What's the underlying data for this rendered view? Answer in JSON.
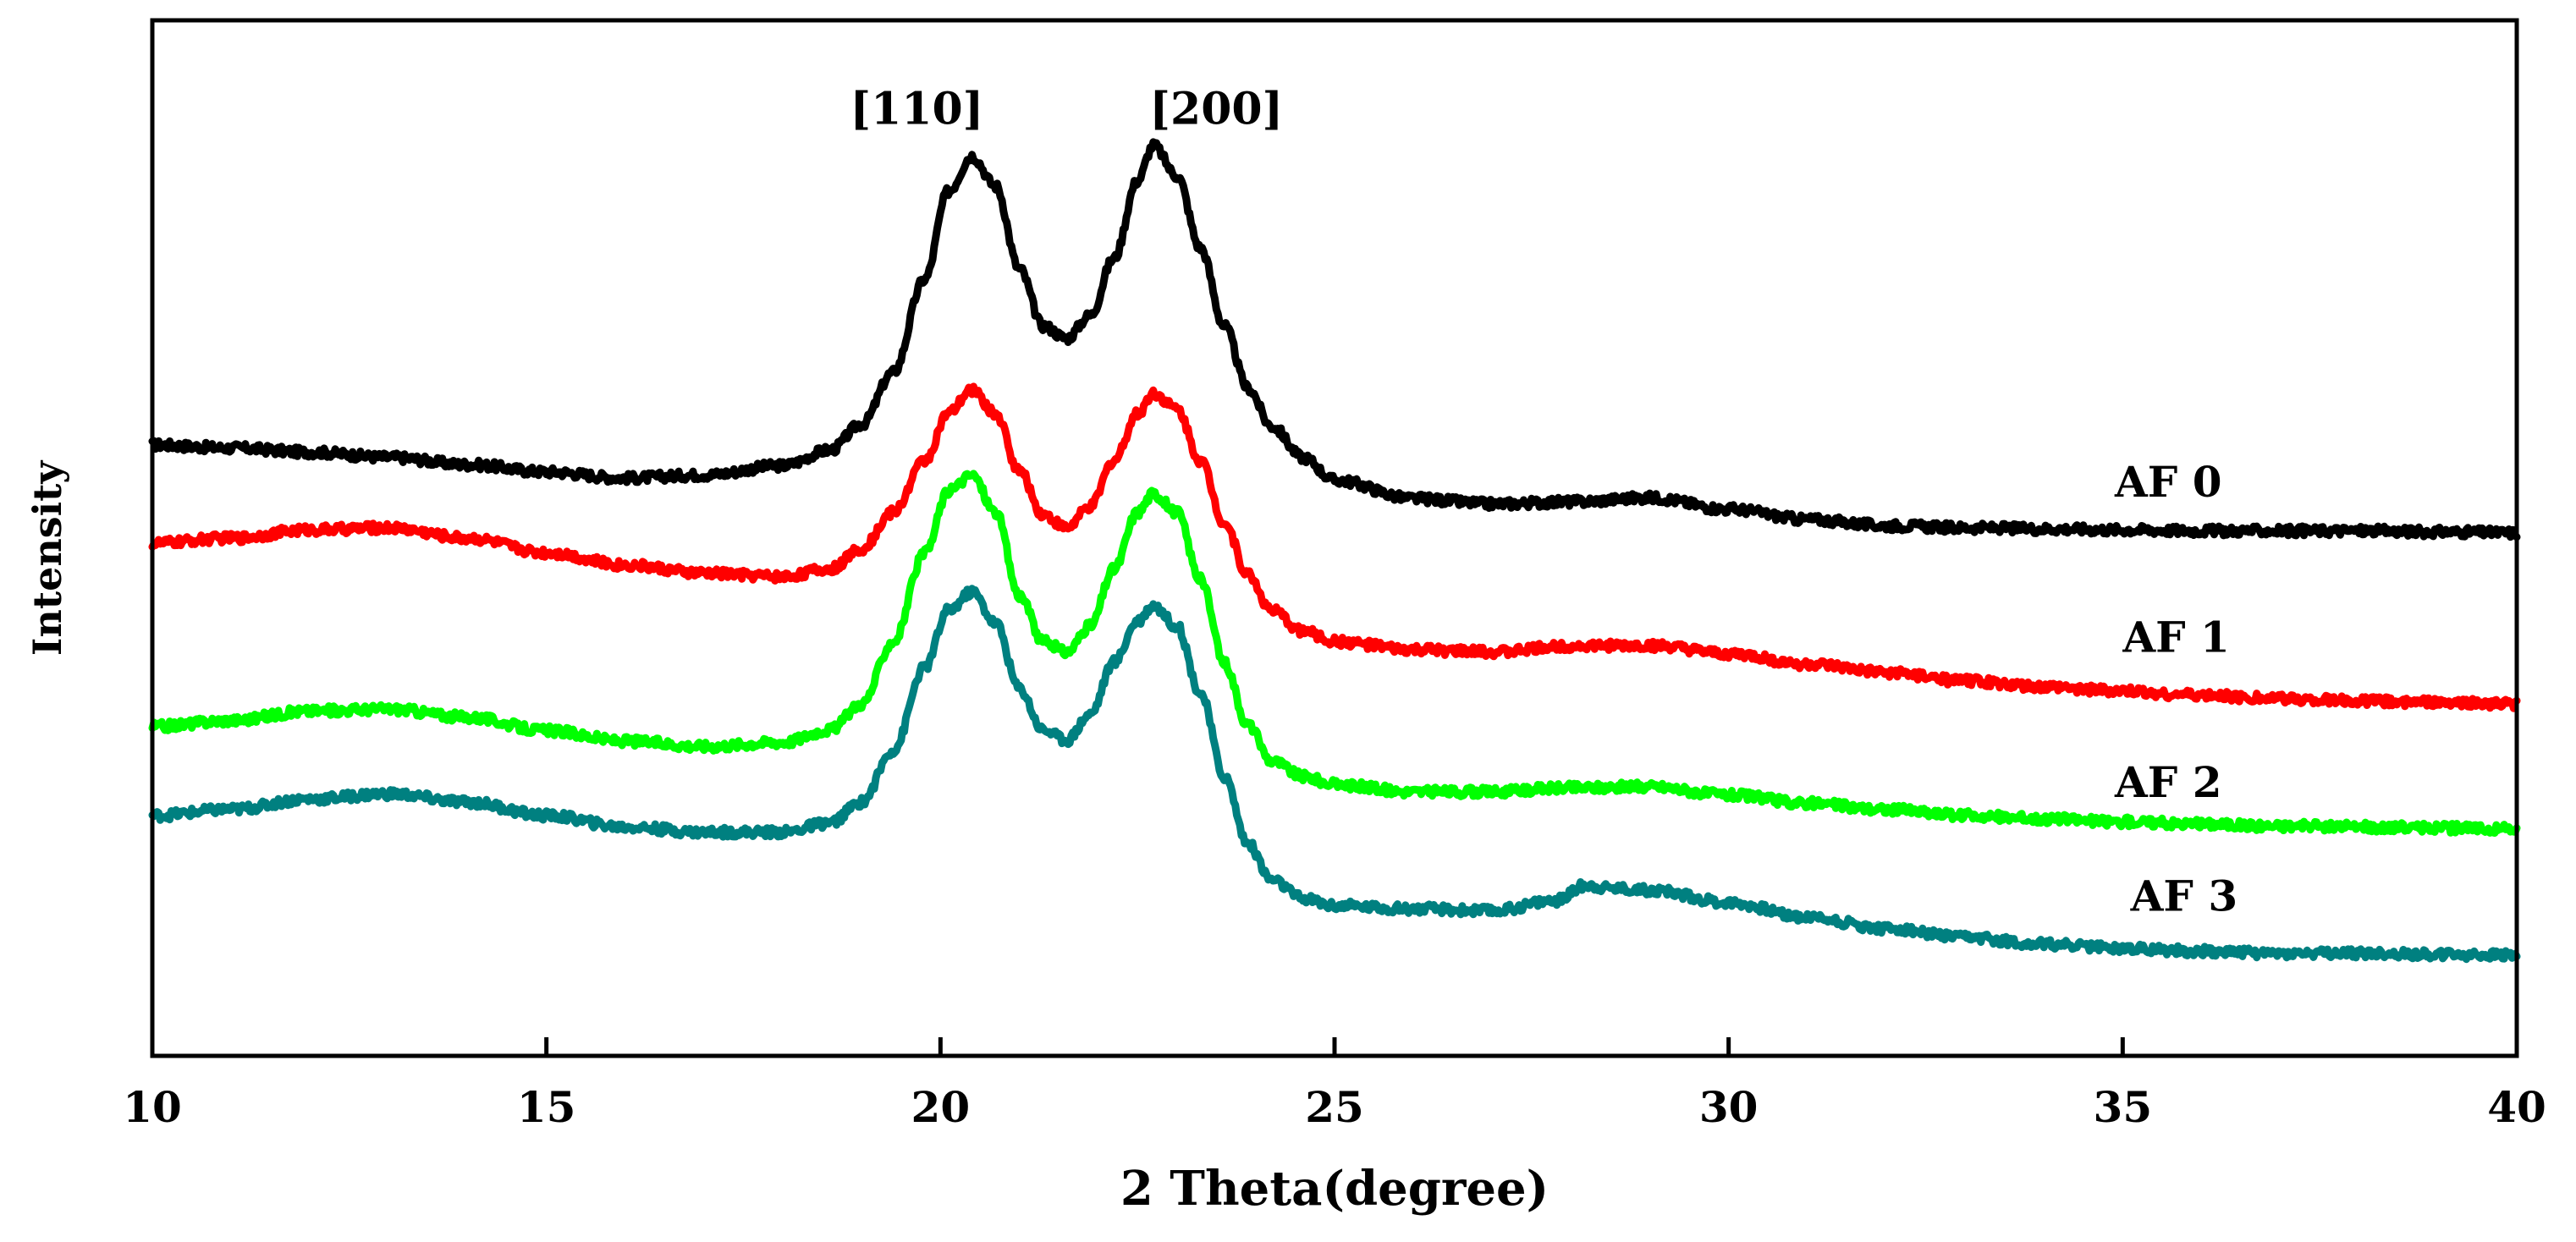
{
  "chart_data": {
    "type": "line",
    "title": "",
    "xlabel": "2 Theta(degree)",
    "ylabel": "Intensity",
    "xlim": [
      10,
      40
    ],
    "ylim": [
      0,
      100
    ],
    "y_ticks_shown": false,
    "x_ticks": [
      10,
      15,
      20,
      25,
      30,
      35,
      40
    ],
    "x_tick_labels": [
      "10",
      "15",
      "20",
      "25",
      "30",
      "35",
      "40"
    ],
    "grid": false,
    "legend": "inline labels at right",
    "annotations": [
      {
        "text": "[110]",
        "x": 19.7,
        "y": 90
      },
      {
        "text": "[200]",
        "x": 23.5,
        "y": 90
      }
    ],
    "series": [
      {
        "name": "AF 0",
        "label_at": {
          "x": 34.9,
          "y": 54
        },
        "color": "#000000",
        "points": [
          [
            10,
            59.0
          ],
          [
            11,
            58.7
          ],
          [
            12,
            58.3
          ],
          [
            13,
            57.8
          ],
          [
            14,
            57.1
          ],
          [
            15,
            56.4
          ],
          [
            16,
            55.8
          ],
          [
            17,
            56.1
          ],
          [
            18,
            57.0
          ],
          [
            18.6,
            58.5
          ],
          [
            19.0,
            61.0
          ],
          [
            19.4,
            66.0
          ],
          [
            19.8,
            75.0
          ],
          [
            20.1,
            83.5
          ],
          [
            20.4,
            86.9
          ],
          [
            20.7,
            84.0
          ],
          [
            21.0,
            76.0
          ],
          [
            21.3,
            70.5
          ],
          [
            21.6,
            69.3
          ],
          [
            21.9,
            71.5
          ],
          [
            22.2,
            77.0
          ],
          [
            22.5,
            84.5
          ],
          [
            22.7,
            87.9
          ],
          [
            23.0,
            85.0
          ],
          [
            23.3,
            78.0
          ],
          [
            23.6,
            70.5
          ],
          [
            23.9,
            64.5
          ],
          [
            24.2,
            60.8
          ],
          [
            24.6,
            57.8
          ],
          [
            25.0,
            55.6
          ],
          [
            26,
            53.8
          ],
          [
            27,
            53.3
          ],
          [
            28,
            53.5
          ],
          [
            29,
            53.9
          ],
          [
            30,
            52.8
          ],
          [
            31,
            51.8
          ],
          [
            32,
            51.2
          ],
          [
            33,
            51.0
          ],
          [
            34,
            50.9
          ],
          [
            35,
            50.8
          ],
          [
            36,
            50.7
          ],
          [
            37,
            50.7
          ],
          [
            38,
            50.7
          ],
          [
            39,
            50.6
          ],
          [
            40,
            50.5
          ]
        ]
      },
      {
        "name": "AF 1",
        "label_at": {
          "x": 35.0,
          "y": 39
        },
        "color": "#ff0000",
        "points": [
          [
            10,
            49.5
          ],
          [
            11,
            50.0
          ],
          [
            12,
            50.8
          ],
          [
            13,
            51.0
          ],
          [
            14,
            50.0
          ],
          [
            15,
            48.6
          ],
          [
            16,
            47.4
          ],
          [
            17,
            46.6
          ],
          [
            18,
            46.3
          ],
          [
            18.6,
            47.0
          ],
          [
            19.0,
            49.0
          ],
          [
            19.4,
            52.5
          ],
          [
            19.8,
            57.5
          ],
          [
            20.1,
            62.0
          ],
          [
            20.4,
            64.3
          ],
          [
            20.7,
            62.0
          ],
          [
            21.0,
            56.5
          ],
          [
            21.3,
            52.3
          ],
          [
            21.6,
            51.0
          ],
          [
            21.9,
            53.0
          ],
          [
            22.2,
            57.5
          ],
          [
            22.5,
            62.0
          ],
          [
            22.7,
            64.0
          ],
          [
            23.0,
            62.5
          ],
          [
            23.3,
            57.5
          ],
          [
            23.6,
            51.5
          ],
          [
            23.9,
            46.5
          ],
          [
            24.2,
            43.0
          ],
          [
            24.6,
            41.0
          ],
          [
            25.0,
            40.0
          ],
          [
            26,
            39.2
          ],
          [
            27,
            39.0
          ],
          [
            28,
            39.6
          ],
          [
            29,
            39.6
          ],
          [
            30,
            38.8
          ],
          [
            31,
            37.8
          ],
          [
            32,
            37.0
          ],
          [
            33,
            36.2
          ],
          [
            34,
            35.6
          ],
          [
            35,
            35.2
          ],
          [
            36,
            34.8
          ],
          [
            37,
            34.5
          ],
          [
            38,
            34.3
          ],
          [
            39,
            34.1
          ],
          [
            40,
            34.0
          ]
        ]
      },
      {
        "name": "AF 2",
        "label_at": {
          "x": 34.9,
          "y": 25
        },
        "color": "#00ff00",
        "points": [
          [
            10,
            31.8
          ],
          [
            11,
            32.4
          ],
          [
            12,
            33.3
          ],
          [
            13,
            33.5
          ],
          [
            14,
            32.7
          ],
          [
            15,
            31.4
          ],
          [
            16,
            30.4
          ],
          [
            17,
            29.9
          ],
          [
            18,
            30.3
          ],
          [
            18.6,
            31.5
          ],
          [
            19.0,
            34.0
          ],
          [
            19.4,
            40.0
          ],
          [
            19.8,
            48.5
          ],
          [
            20.1,
            54.5
          ],
          [
            20.4,
            56.1
          ],
          [
            20.7,
            52.5
          ],
          [
            21.0,
            44.5
          ],
          [
            21.3,
            40.0
          ],
          [
            21.6,
            39.0
          ],
          [
            21.9,
            41.5
          ],
          [
            22.2,
            47.0
          ],
          [
            22.5,
            52.5
          ],
          [
            22.7,
            54.3
          ],
          [
            23.0,
            52.5
          ],
          [
            23.3,
            46.0
          ],
          [
            23.6,
            38.0
          ],
          [
            23.9,
            32.0
          ],
          [
            24.2,
            28.5
          ],
          [
            24.6,
            27.0
          ],
          [
            25.0,
            26.2
          ],
          [
            26,
            25.5
          ],
          [
            27,
            25.5
          ],
          [
            28,
            25.9
          ],
          [
            29,
            26.0
          ],
          [
            30,
            25.2
          ],
          [
            31,
            24.4
          ],
          [
            32,
            23.8
          ],
          [
            33,
            23.2
          ],
          [
            34,
            22.9
          ],
          [
            35,
            22.6
          ],
          [
            36,
            22.4
          ],
          [
            37,
            22.2
          ],
          [
            38,
            22.1
          ],
          [
            39,
            22.0
          ],
          [
            40,
            21.9
          ]
        ]
      },
      {
        "name": "AF 3",
        "label_at": {
          "x": 35.1,
          "y": 14
        },
        "color": "#008080",
        "points": [
          [
            10,
            23.2
          ],
          [
            11,
            23.8
          ],
          [
            12,
            24.8
          ],
          [
            13,
            25.3
          ],
          [
            14,
            24.5
          ],
          [
            15,
            23.2
          ],
          [
            16,
            22.1
          ],
          [
            17,
            21.6
          ],
          [
            18,
            21.6
          ],
          [
            18.6,
            22.5
          ],
          [
            19.0,
            24.5
          ],
          [
            19.4,
            29.5
          ],
          [
            19.8,
            37.5
          ],
          [
            20.1,
            43.0
          ],
          [
            20.4,
            44.8
          ],
          [
            20.7,
            41.8
          ],
          [
            21.0,
            35.5
          ],
          [
            21.3,
            31.5
          ],
          [
            21.6,
            30.5
          ],
          [
            21.9,
            33.0
          ],
          [
            22.2,
            38.0
          ],
          [
            22.5,
            42.0
          ],
          [
            22.7,
            43.5
          ],
          [
            23.0,
            41.5
          ],
          [
            23.3,
            35.0
          ],
          [
            23.6,
            27.0
          ],
          [
            23.9,
            20.5
          ],
          [
            24.2,
            17.0
          ],
          [
            24.6,
            15.2
          ],
          [
            25.0,
            14.5
          ],
          [
            26,
            14.2
          ],
          [
            27,
            14.0
          ],
          [
            27.8,
            15.0
          ],
          [
            28.2,
            16.5
          ],
          [
            28.5,
            16.2
          ],
          [
            29,
            16.0
          ],
          [
            30,
            14.8
          ],
          [
            31,
            13.4
          ],
          [
            32,
            12.3
          ],
          [
            33,
            11.4
          ],
          [
            34,
            10.8
          ],
          [
            35,
            10.4
          ],
          [
            36,
            10.1
          ],
          [
            37,
            9.9
          ],
          [
            38,
            9.9
          ],
          [
            39,
            9.8
          ],
          [
            40,
            9.7
          ]
        ]
      }
    ]
  }
}
